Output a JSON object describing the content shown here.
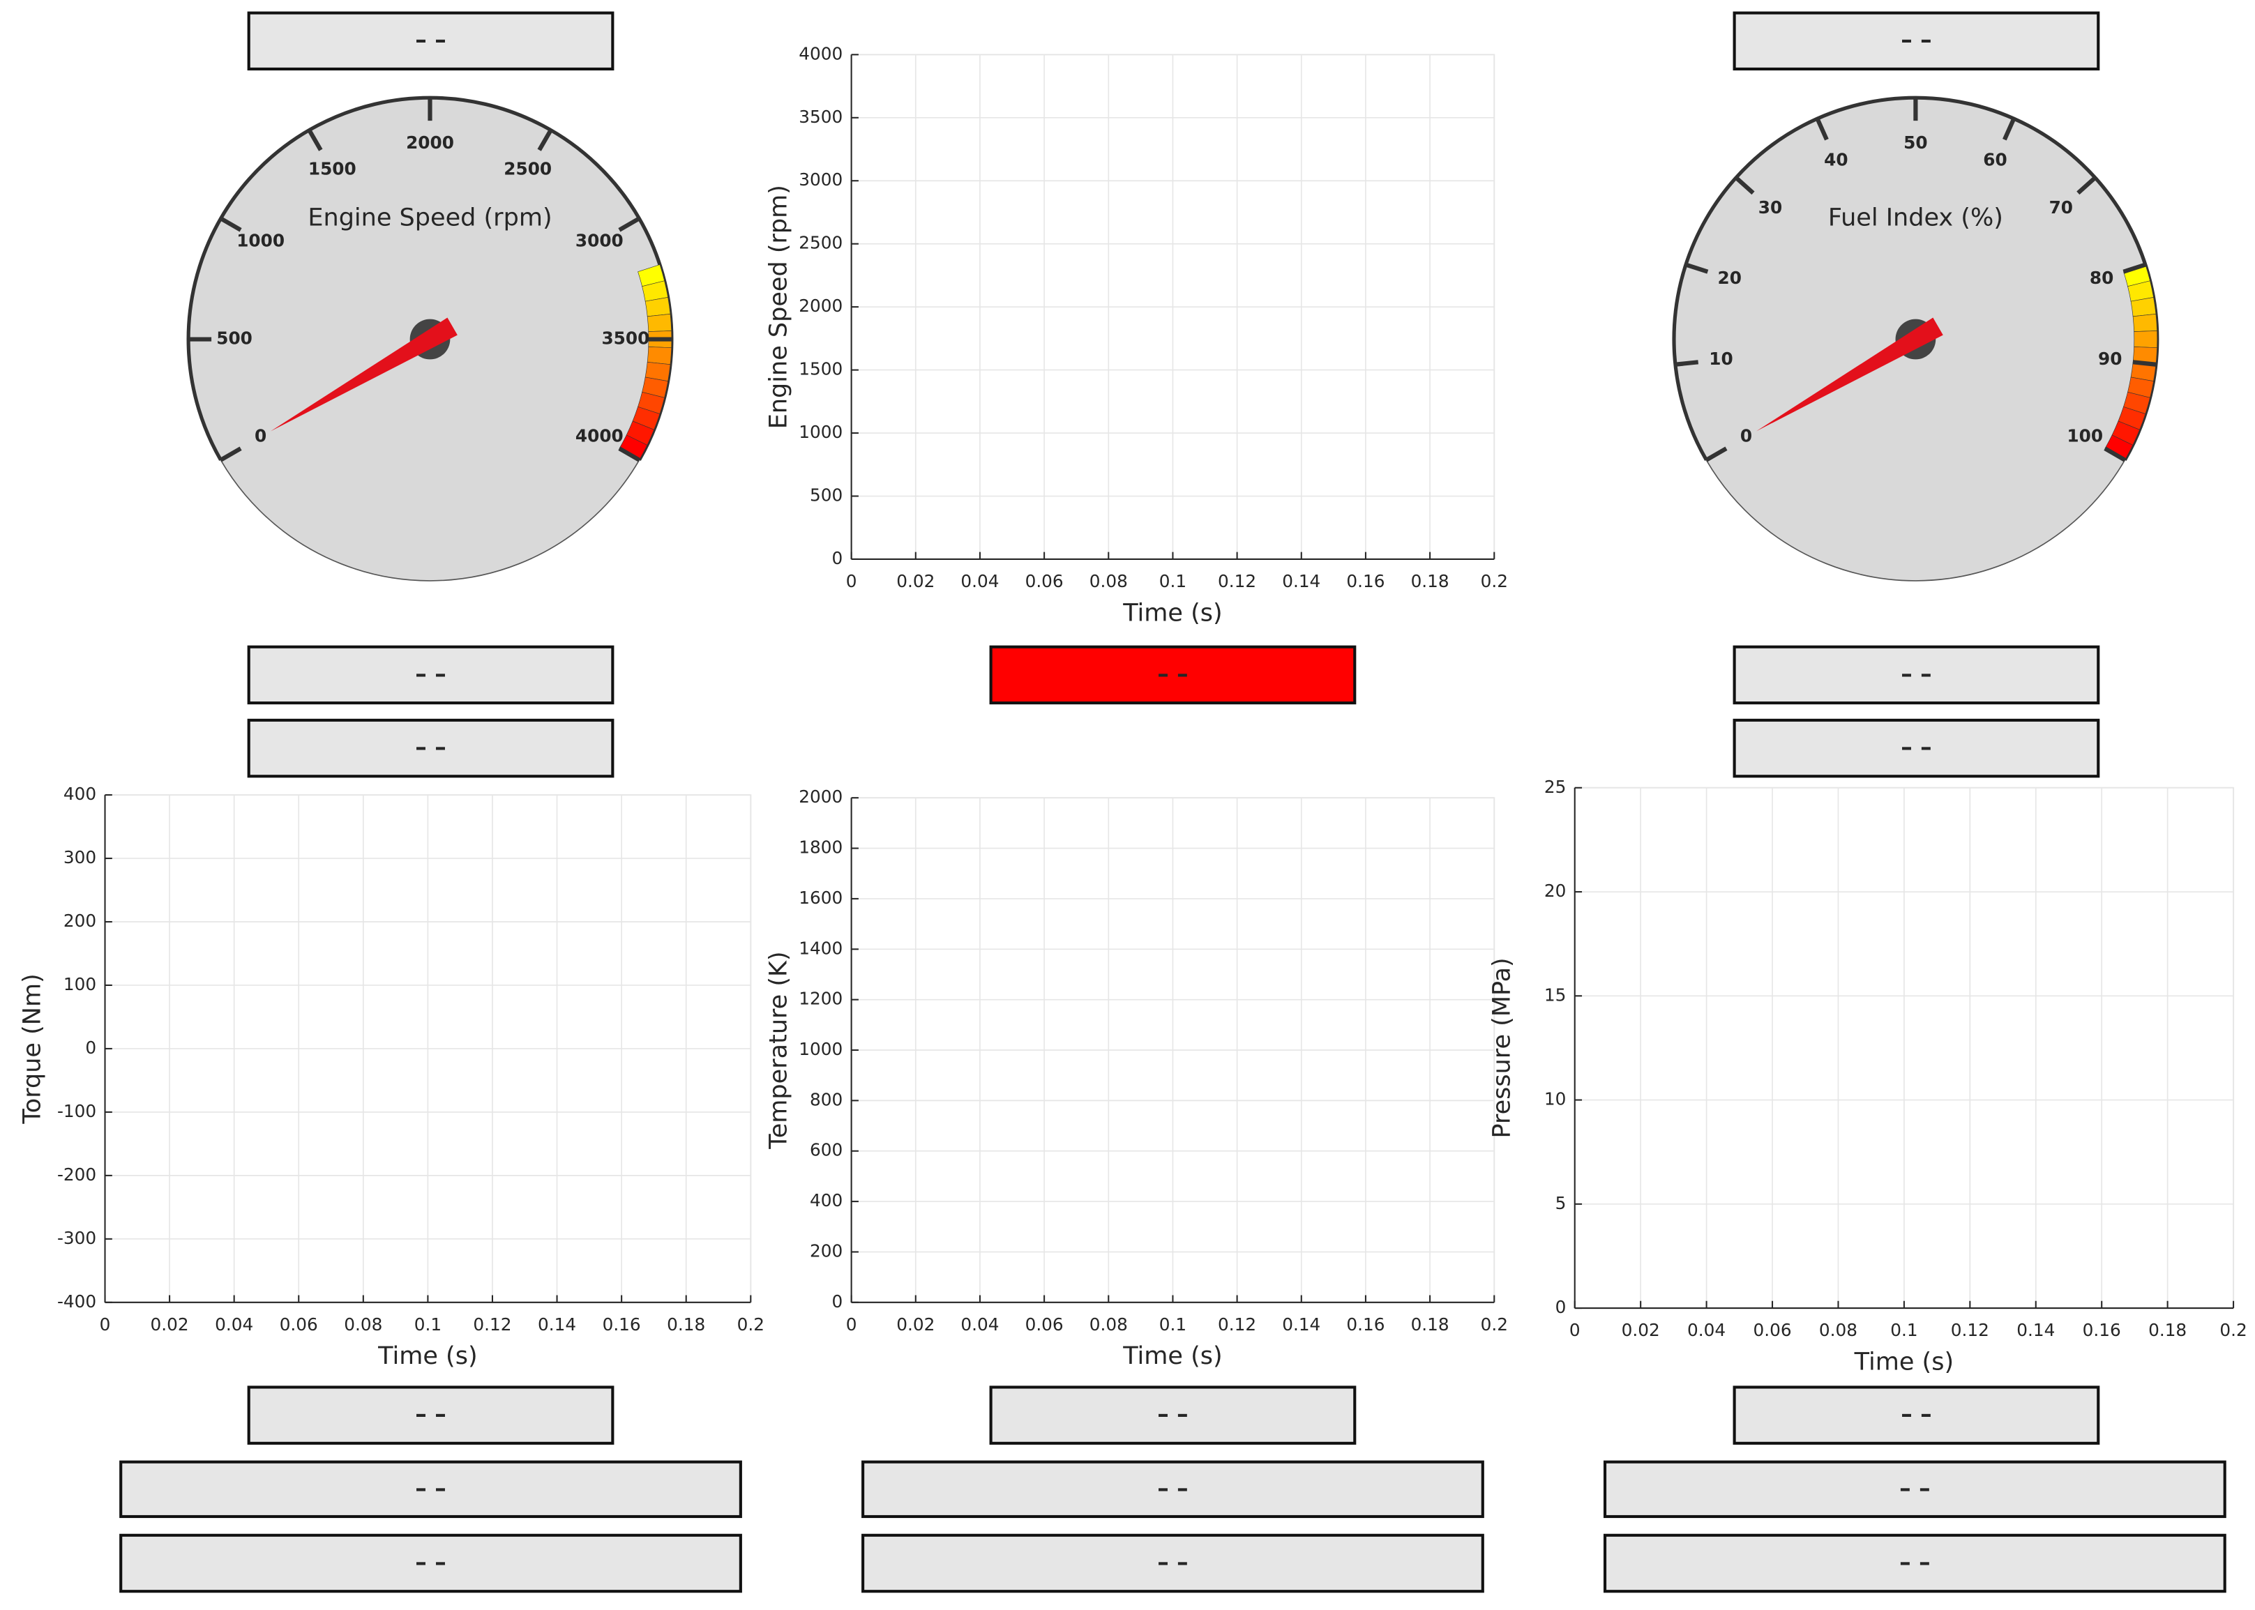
{
  "gauges": [
    {
      "label": "Engine Speed (rpm)",
      "range": [
        0,
        4000
      ],
      "ticks": [
        0,
        500,
        1000,
        1500,
        2000,
        2500,
        3000,
        3500,
        4000
      ],
      "value": 0,
      "warning_range": [
        3200,
        4000
      ]
    },
    {
      "label": "Fuel Index (%)",
      "range": [
        0,
        100
      ],
      "ticks": [
        0,
        10,
        20,
        30,
        40,
        50,
        60,
        70,
        80,
        90,
        100
      ],
      "value": 0,
      "warning_range": [
        80,
        100
      ]
    }
  ],
  "plots": [
    {
      "xlabel": "Time (s)",
      "ylabel": "Engine Speed (rpm)",
      "xlim": [
        0,
        0.2
      ],
      "xticks": [
        0,
        0.02,
        0.04,
        0.06,
        0.08,
        0.1,
        0.12,
        0.14,
        0.16,
        0.18,
        0.2
      ],
      "ylim": [
        0,
        4000
      ],
      "yticks": [
        0,
        500,
        1000,
        1500,
        2000,
        2500,
        3000,
        3500,
        4000
      ],
      "grid": true
    },
    {
      "xlabel": "Time (s)",
      "ylabel": "Torque (Nm)",
      "xlim": [
        0,
        0.2
      ],
      "xticks": [
        0,
        0.02,
        0.04,
        0.06,
        0.08,
        0.1,
        0.12,
        0.14,
        0.16,
        0.18,
        0.2
      ],
      "ylim": [
        -400,
        400
      ],
      "yticks": [
        -400,
        -300,
        -200,
        -100,
        0,
        100,
        200,
        300,
        400
      ],
      "grid": true
    },
    {
      "xlabel": "Time (s)",
      "ylabel": "Temperature (K)",
      "xlim": [
        0,
        0.2
      ],
      "xticks": [
        0,
        0.02,
        0.04,
        0.06,
        0.08,
        0.1,
        0.12,
        0.14,
        0.16,
        0.18,
        0.2
      ],
      "ylim": [
        0,
        2000
      ],
      "yticks": [
        0,
        200,
        400,
        600,
        800,
        1000,
        1200,
        1400,
        1600,
        1800,
        2000
      ],
      "grid": true
    },
    {
      "xlabel": "Time (s)",
      "ylabel": "Pressure (MPa)",
      "xlim": [
        0,
        0.2
      ],
      "xticks": [
        0,
        0.02,
        0.04,
        0.06,
        0.08,
        0.1,
        0.12,
        0.14,
        0.16,
        0.18,
        0.2
      ],
      "ylim": [
        0,
        25
      ],
      "yticks": [
        0,
        5,
        10,
        15,
        20,
        25
      ],
      "grid": true
    }
  ],
  "displays": [
    {
      "text": "– –",
      "color": "#e6e6e6"
    },
    {
      "text": "– –",
      "color": "#e6e6e6"
    },
    {
      "text": "– –",
      "color": "#e6e6e6"
    },
    {
      "text": "– –",
      "color": "#ff0000"
    },
    {
      "text": "– –",
      "color": "#e6e6e6"
    },
    {
      "text": "– –",
      "color": "#e6e6e6"
    },
    {
      "text": "– –",
      "color": "#e6e6e6"
    },
    {
      "text": "– –",
      "color": "#e6e6e6"
    },
    {
      "text": "– –",
      "color": "#e6e6e6"
    },
    {
      "text": "– –",
      "color": "#e6e6e6"
    },
    {
      "text": "– –",
      "color": "#e6e6e6"
    },
    {
      "text": "– –",
      "color": "#e6e6e6"
    },
    {
      "text": "– –",
      "color": "#e6e6e6"
    },
    {
      "text": "– –",
      "color": "#e6e6e6"
    },
    {
      "text": "– –",
      "color": "#e6e6e6"
    },
    {
      "text": "– –",
      "color": "#e6e6e6"
    }
  ]
}
